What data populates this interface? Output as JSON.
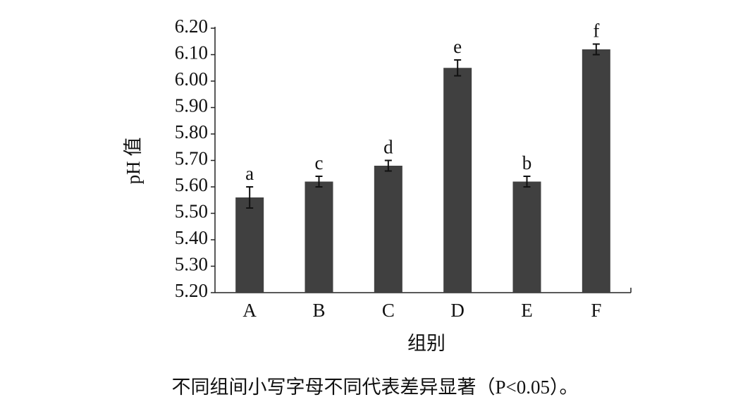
{
  "chart_data": {
    "type": "bar",
    "y_label": "pH 值",
    "x_label": "组别",
    "caption": "不同组间小写字母不同代表差异显著（P<0.05）。",
    "categories": [
      "A",
      "B",
      "C",
      "D",
      "E",
      "F"
    ],
    "values": [
      5.56,
      5.62,
      5.68,
      6.05,
      5.62,
      6.12
    ],
    "errors": [
      0.04,
      0.02,
      0.02,
      0.03,
      0.02,
      0.02
    ],
    "annotations": [
      "a",
      "c",
      "d",
      "e",
      "b",
      "f"
    ],
    "color": "#404040",
    "ylim": [
      5.2,
      6.2
    ],
    "yticks": [
      {
        "value": 5.2,
        "label": "5.20"
      },
      {
        "value": 5.3,
        "label": "5.30"
      },
      {
        "value": 5.4,
        "label": "5.40"
      },
      {
        "value": 5.5,
        "label": "5.50"
      },
      {
        "value": 5.6,
        "label": "5.60"
      },
      {
        "value": 5.7,
        "label": "5.70"
      },
      {
        "value": 5.8,
        "label": "5.80"
      },
      {
        "value": 5.9,
        "label": "5.90"
      },
      {
        "value": 6.0,
        "label": "6.00"
      },
      {
        "value": 6.1,
        "label": "6.10"
      },
      {
        "value": 6.2,
        "label": "6.20"
      }
    ],
    "grid": false
  }
}
